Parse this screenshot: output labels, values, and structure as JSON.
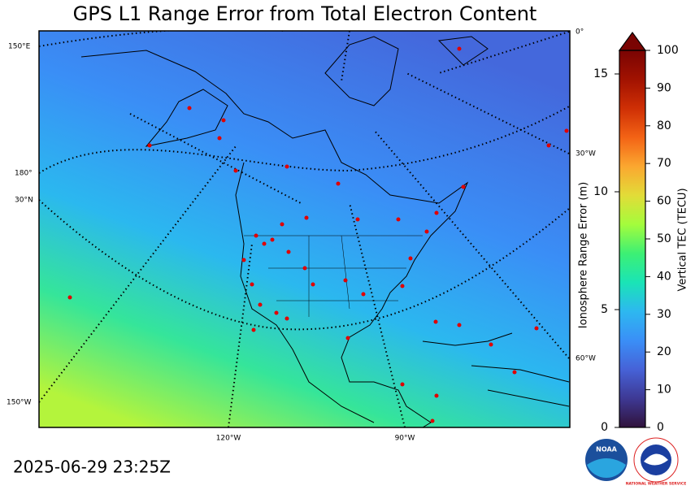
{
  "title": "GPS L1 Range Error from Total Electron Content",
  "timestamp": "2025-06-29 23:25Z",
  "map": {
    "graticule_labels": [
      "150°E",
      "180°",
      "30°N",
      "150°W",
      "0°",
      "30°W",
      "60°W",
      "120°W",
      "90°W"
    ]
  },
  "colorbar": {
    "label": "Vertical TEC (TECU)",
    "lim": [
      0,
      100
    ],
    "ticks": [
      0,
      10,
      20,
      30,
      40,
      50,
      60,
      70,
      80,
      90,
      100
    ],
    "colors": [
      "#30123b",
      "#3e3994",
      "#4662d7",
      "#3a8ff7",
      "#2db8f0",
      "#1ae4b6",
      "#3df074",
      "#a4fc3c",
      "#e2dc38",
      "#fba730",
      "#f36315",
      "#cf2f05",
      "#a11201",
      "#7a0403"
    ],
    "extend_color": "#7a0403",
    "range_label": "Ionosphere Range Error (m)",
    "range_lim": [
      0,
      16
    ],
    "range_ticks": [
      0,
      5,
      10,
      15
    ]
  },
  "logos": [
    "NOAA",
    "NATIONAL WEATHER SERVICE"
  ]
}
